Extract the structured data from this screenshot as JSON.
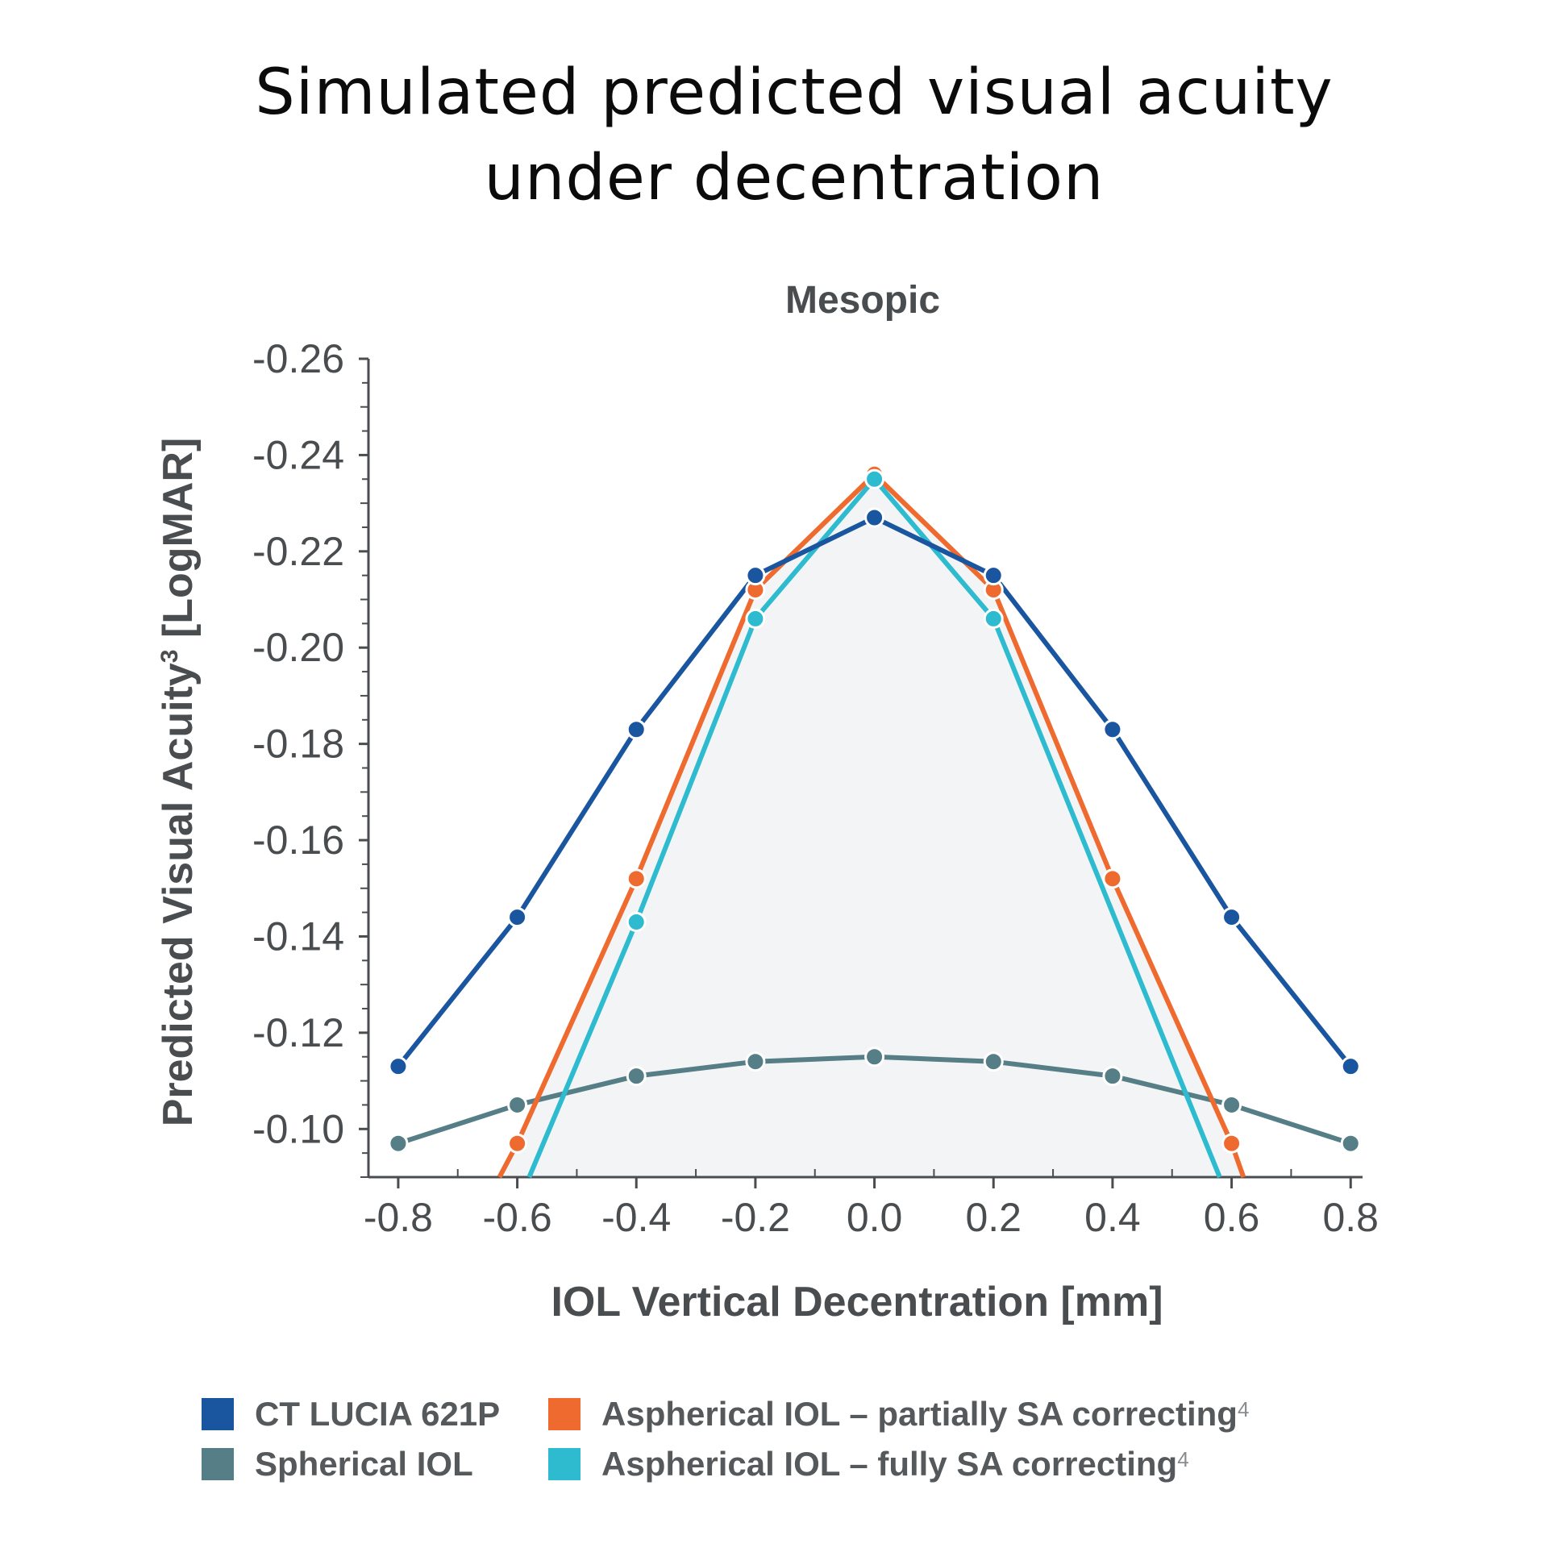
{
  "title_line1": "Simulated predicted visual acuity",
  "title_line2": "under decentration",
  "chart_data": {
    "type": "line",
    "subtitle": "Mesopic",
    "xlabel": "IOL Vertical Decentration [mm]",
    "ylabel": "Predicted Visual Acuity",
    "ylabel_sup": "3",
    "ylabel_unit": " [LogMAR]",
    "xlim": [
      -0.85,
      0.82
    ],
    "ylim": [
      -0.09,
      -0.26
    ],
    "y_reversed": true,
    "x_ticks": [
      "-0.8",
      "-0.6",
      "-0.4",
      "-0.2",
      "0.0",
      "0.2",
      "0.4",
      "0.6",
      "0.8"
    ],
    "y_ticks": [
      "-0.26",
      "-0.24",
      "-0.22",
      "-0.20",
      "-0.18",
      "-0.16",
      "-0.14",
      "-0.12",
      "-0.10"
    ],
    "grid": false,
    "legend_position": "bottom",
    "x": [
      -0.8,
      -0.6,
      -0.4,
      -0.2,
      0.0,
      0.2,
      0.4,
      0.6,
      0.8
    ],
    "series": [
      {
        "name": "CT LUCIA 621P",
        "color": "#1a56a0",
        "values": [
          -0.113,
          -0.144,
          -0.183,
          -0.215,
          -0.227,
          -0.215,
          -0.183,
          -0.144,
          -0.113
        ]
      },
      {
        "name": "Spherical IOL",
        "color": "#557e86",
        "values": [
          -0.097,
          -0.105,
          -0.111,
          -0.114,
          -0.115,
          -0.114,
          -0.111,
          -0.105,
          -0.097
        ]
      },
      {
        "name": "Aspherical IOL – partially SA correcting",
        "name_sup": "4",
        "color": "#ee6a2e",
        "values": [
          null,
          -0.097,
          -0.152,
          -0.212,
          -0.236,
          -0.212,
          -0.152,
          -0.097,
          null
        ],
        "clip_at_axis": [
          -0.63,
          0.62
        ]
      },
      {
        "name": "Aspherical IOL – fully SA correcting",
        "name_sup": "4",
        "color": "#2ebbd0",
        "values": [
          null,
          null,
          -0.143,
          -0.206,
          -0.235,
          -0.206,
          null,
          null,
          null
        ],
        "clip_at_axis": [
          -0.58,
          0.58
        ]
      }
    ]
  }
}
